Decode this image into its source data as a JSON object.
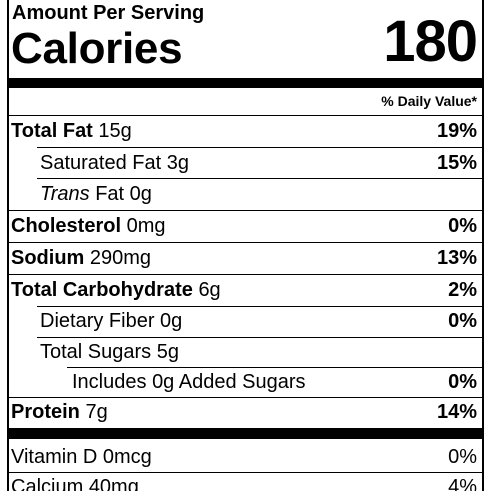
{
  "header": {
    "amount_per_serving": "Amount Per Serving",
    "calories_label": "Calories",
    "calories_value": "180",
    "daily_value_header": "% Daily Value*"
  },
  "nutrients": {
    "total_fat": {
      "name": "Total Fat",
      "amount": "15g",
      "dv": "19%"
    },
    "saturated_fat": {
      "name": "Saturated Fat",
      "amount": "3g",
      "dv": "15%"
    },
    "trans_fat": {
      "name_italic": "Trans",
      "name": "Fat",
      "amount": "0g"
    },
    "cholesterol": {
      "name": "Cholesterol",
      "amount": "0mg",
      "dv": "0%"
    },
    "sodium": {
      "name": "Sodium",
      "amount": "290mg",
      "dv": "13%"
    },
    "total_carbohydrate": {
      "name": "Total Carbohydrate",
      "amount": "6g",
      "dv": "2%"
    },
    "dietary_fiber": {
      "name": "Dietary Fiber",
      "amount": "0g",
      "dv": "0%"
    },
    "total_sugars": {
      "name": "Total Sugars",
      "amount": "5g"
    },
    "added_sugars": {
      "prefix": "Includes",
      "amount": "0g",
      "name": "Added Sugars",
      "dv": "0%"
    },
    "protein": {
      "name": "Protein",
      "amount": "7g",
      "dv": "14%"
    }
  },
  "vitamins": {
    "vitamin_d": {
      "name": "Vitamin D",
      "amount": "0mcg",
      "dv": "0%"
    },
    "calcium": {
      "name": "Calcium",
      "amount": "40mg",
      "dv": "4%"
    }
  }
}
